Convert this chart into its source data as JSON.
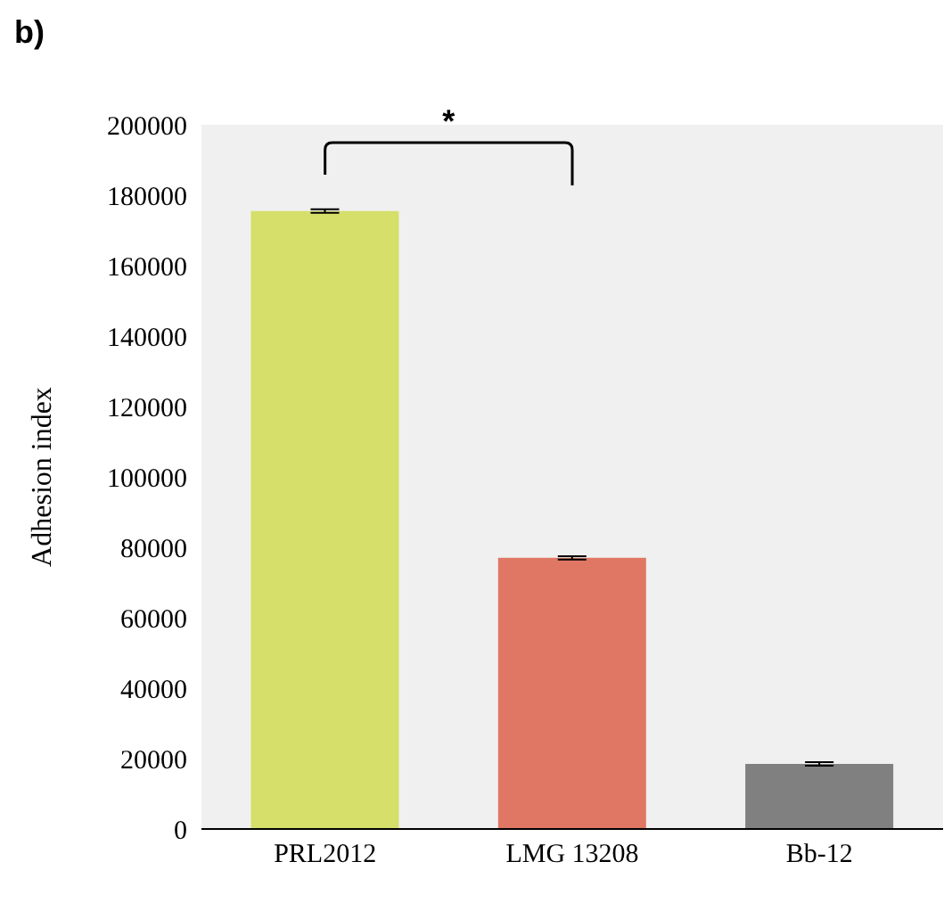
{
  "chart_data": {
    "type": "bar",
    "title": "b)",
    "ylabel": "Adhesion index",
    "categories": [
      "PRL2012",
      "LMG 13208",
      "Bb-12"
    ],
    "values": [
      175500,
      77000,
      18500
    ],
    "colors": [
      "#d5df6a",
      "#e07765",
      "#808080"
    ],
    "errors": [
      500,
      500,
      500
    ],
    "ylim": [
      0,
      200000
    ],
    "yticks": [
      0,
      20000,
      40000,
      60000,
      80000,
      100000,
      120000,
      140000,
      160000,
      180000,
      200000
    ],
    "grid": false,
    "annotations": [
      "*"
    ]
  }
}
